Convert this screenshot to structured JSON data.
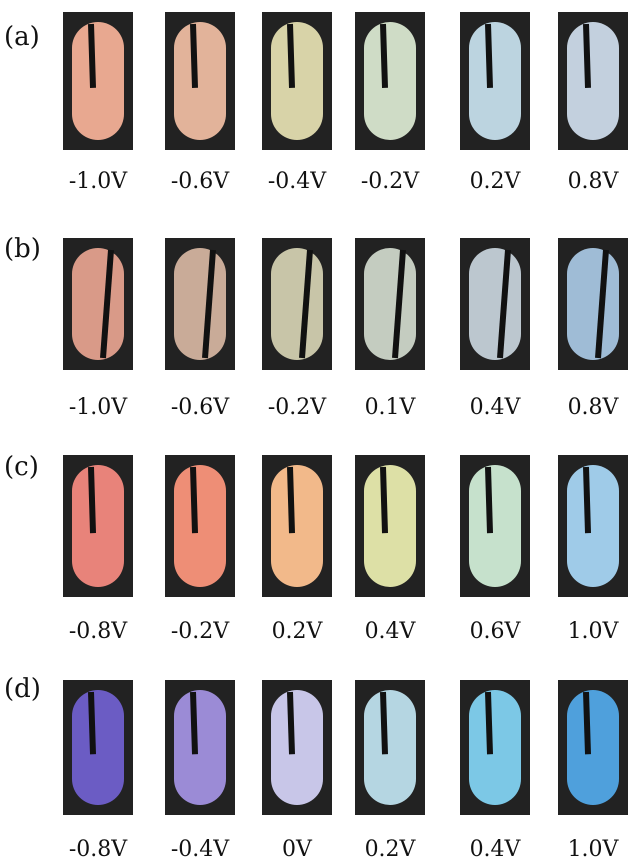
{
  "rows": [
    {
      "tag": "(a)",
      "labels": [
        "-1.0V",
        "-0.6V",
        "-0.4V",
        "-0.2V",
        "0.2V",
        "0.8V"
      ]
    },
    {
      "tag": "(b)",
      "labels": [
        "-1.0V",
        "-0.6V",
        "-0.2V",
        "0.1V",
        "0.4V",
        "0.8V"
      ]
    },
    {
      "tag": "(c)",
      "labels": [
        "-0.8V",
        "-0.2V",
        "0.2V",
        "0.4V",
        "0.6V",
        "1.0V"
      ]
    },
    {
      "tag": "(d)",
      "labels": [
        "-0.8V",
        "-0.4V",
        "0V",
        "0.2V",
        "0.4V",
        "1.0V"
      ]
    }
  ]
}
